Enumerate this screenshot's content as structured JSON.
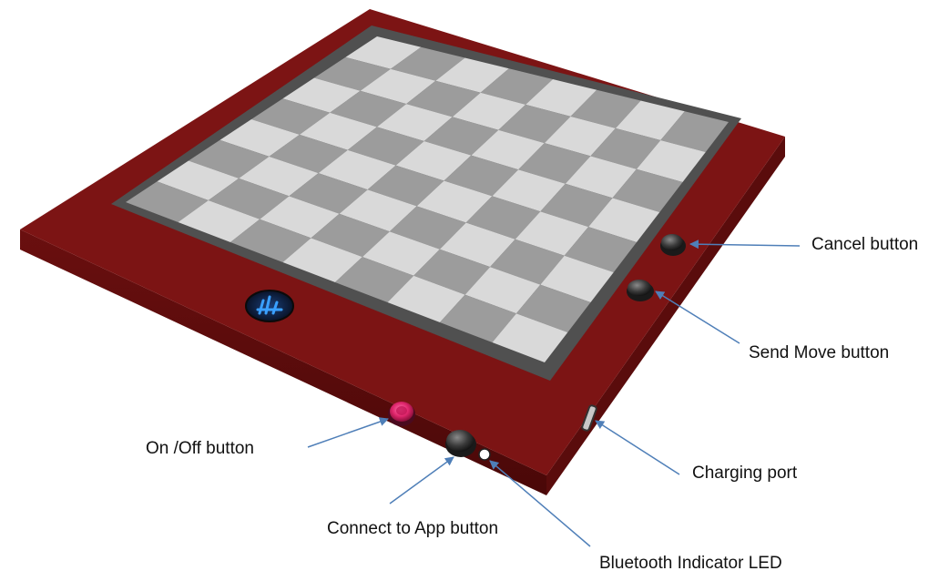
{
  "labels": {
    "cancel": "Cancel button",
    "send_move": "Send Move button",
    "charging_port": "Charging port",
    "bluetooth_led": "Bluetooth Indicator LED",
    "connect_app": "Connect to App button",
    "on_off": "On /Off button"
  },
  "board": {
    "squares_per_side": 8,
    "frame_color": "#7c1414",
    "light_square_color": "#d9d9d9",
    "dark_square_color": "#9c9c9c",
    "inner_border_color": "#505050"
  },
  "colors": {
    "arrow": "#4f7fb8",
    "on_off_button": "#e0266c",
    "led": "#ffffff",
    "logo_glow": "#3aa0ff"
  }
}
